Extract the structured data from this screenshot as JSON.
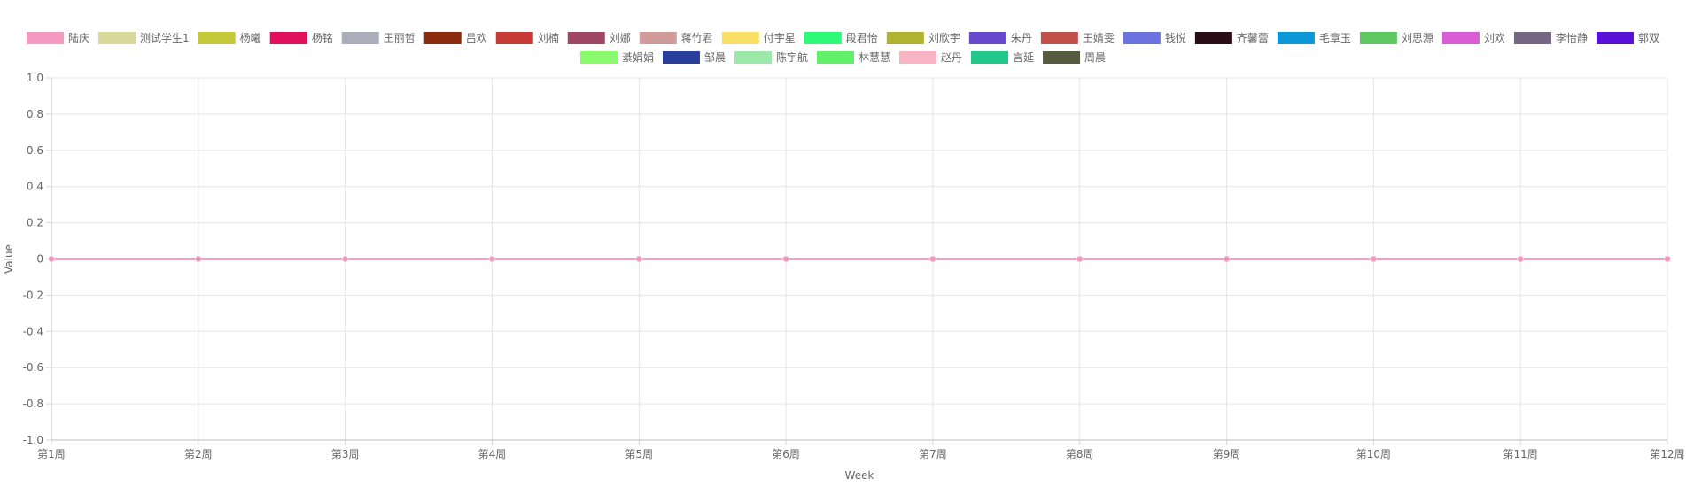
{
  "chart_data": {
    "type": "line",
    "title": "",
    "xlabel": "Week",
    "ylabel": "Value",
    "ylim": [
      -1.0,
      1.0
    ],
    "y_ticks": [
      1.0,
      0.8,
      0.6,
      0.4,
      0.2,
      0,
      -0.2,
      -0.4,
      -0.6,
      -0.8,
      -1.0
    ],
    "y_tick_labels": [
      "1.0",
      "0.8",
      "0.6",
      "0.4",
      "0.2",
      "0",
      "-0.2",
      "-0.4",
      "-0.6",
      "-0.8",
      "-1.0"
    ],
    "categories": [
      "第1周",
      "第2周",
      "第3周",
      "第4周",
      "第5周",
      "第6周",
      "第7周",
      "第8周",
      "第9周",
      "第10周",
      "第11周",
      "第12周"
    ],
    "grid": true,
    "legend_position": "top",
    "series": [
      {
        "name": "陆庆",
        "color": "#f49ac1",
        "values": [
          0,
          0,
          0,
          0,
          0,
          0,
          0,
          0,
          0,
          0,
          0,
          0
        ]
      },
      {
        "name": "测试学生1",
        "color": "#d9d99b",
        "values": [
          0,
          0,
          0,
          0,
          0,
          0,
          0,
          0,
          0,
          0,
          0,
          0
        ]
      },
      {
        "name": "杨曦",
        "color": "#c4c93a",
        "values": [
          0,
          0,
          0,
          0,
          0,
          0,
          0,
          0,
          0,
          0,
          0,
          0
        ]
      },
      {
        "name": "杨铭",
        "color": "#e0105d",
        "values": [
          0,
          0,
          0,
          0,
          0,
          0,
          0,
          0,
          0,
          0,
          0,
          0
        ]
      },
      {
        "name": "王丽哲",
        "color": "#adadbb",
        "values": [
          0,
          0,
          0,
          0,
          0,
          0,
          0,
          0,
          0,
          0,
          0,
          0
        ]
      },
      {
        "name": "吕欢",
        "color": "#8b2a0c",
        "values": [
          0,
          0,
          0,
          0,
          0,
          0,
          0,
          0,
          0,
          0,
          0,
          0
        ]
      },
      {
        "name": "刘楠",
        "color": "#c63a37",
        "values": [
          0,
          0,
          0,
          0,
          0,
          0,
          0,
          0,
          0,
          0,
          0,
          0
        ]
      },
      {
        "name": "刘娜",
        "color": "#a14766",
        "values": [
          0,
          0,
          0,
          0,
          0,
          0,
          0,
          0,
          0,
          0,
          0,
          0
        ]
      },
      {
        "name": "蒋竹君",
        "color": "#cf9b9b",
        "values": [
          0,
          0,
          0,
          0,
          0,
          0,
          0,
          0,
          0,
          0,
          0,
          0
        ]
      },
      {
        "name": "付宇星",
        "color": "#fbe068",
        "values": [
          0,
          0,
          0,
          0,
          0,
          0,
          0,
          0,
          0,
          0,
          0,
          0
        ]
      },
      {
        "name": "段君怡",
        "color": "#2dfb78",
        "values": [
          0,
          0,
          0,
          0,
          0,
          0,
          0,
          0,
          0,
          0,
          0,
          0
        ]
      },
      {
        "name": "刘欣宇",
        "color": "#b1b22f",
        "values": [
          0,
          0,
          0,
          0,
          0,
          0,
          0,
          0,
          0,
          0,
          0,
          0
        ]
      },
      {
        "name": "朱丹",
        "color": "#6649cc",
        "values": [
          0,
          0,
          0,
          0,
          0,
          0,
          0,
          0,
          0,
          0,
          0,
          0
        ]
      },
      {
        "name": "王婧雯",
        "color": "#c4504b",
        "values": [
          0,
          0,
          0,
          0,
          0,
          0,
          0,
          0,
          0,
          0,
          0,
          0
        ]
      },
      {
        "name": "钱悦",
        "color": "#6a73de",
        "values": [
          0,
          0,
          0,
          0,
          0,
          0,
          0,
          0,
          0,
          0,
          0,
          0
        ]
      },
      {
        "name": "齐馨蕾",
        "color": "#2b0d17",
        "values": [
          0,
          0,
          0,
          0,
          0,
          0,
          0,
          0,
          0,
          0,
          0,
          0
        ]
      },
      {
        "name": "毛章玉",
        "color": "#0b96d6",
        "values": [
          0,
          0,
          0,
          0,
          0,
          0,
          0,
          0,
          0,
          0,
          0,
          0
        ]
      },
      {
        "name": "刘思源",
        "color": "#5ec962",
        "values": [
          0,
          0,
          0,
          0,
          0,
          0,
          0,
          0,
          0,
          0,
          0,
          0
        ]
      },
      {
        "name": "刘欢",
        "color": "#d95ed4",
        "values": [
          0,
          0,
          0,
          0,
          0,
          0,
          0,
          0,
          0,
          0,
          0,
          0
        ]
      },
      {
        "name": "李怡静",
        "color": "#756683",
        "values": [
          0,
          0,
          0,
          0,
          0,
          0,
          0,
          0,
          0,
          0,
          0,
          0
        ]
      },
      {
        "name": "郭双",
        "color": "#5911d9",
        "values": [
          0,
          0,
          0,
          0,
          0,
          0,
          0,
          0,
          0,
          0,
          0,
          0
        ]
      },
      {
        "name": "綦娟娟",
        "color": "#89fb6c",
        "values": [
          0,
          0,
          0,
          0,
          0,
          0,
          0,
          0,
          0,
          0,
          0,
          0
        ]
      },
      {
        "name": "邹晨",
        "color": "#28409b",
        "values": [
          0,
          0,
          0,
          0,
          0,
          0,
          0,
          0,
          0,
          0,
          0,
          0
        ]
      },
      {
        "name": "陈宇航",
        "color": "#9be8a8",
        "values": [
          0,
          0,
          0,
          0,
          0,
          0,
          0,
          0,
          0,
          0,
          0,
          0
        ]
      },
      {
        "name": "林慧慧",
        "color": "#62f06a",
        "values": [
          0,
          0,
          0,
          0,
          0,
          0,
          0,
          0,
          0,
          0,
          0,
          0
        ]
      },
      {
        "name": "赵丹",
        "color": "#f8b3c4",
        "values": [
          0,
          0,
          0,
          0,
          0,
          0,
          0,
          0,
          0,
          0,
          0,
          0
        ]
      },
      {
        "name": "言延",
        "color": "#22c78c",
        "values": [
          0,
          0,
          0,
          0,
          0,
          0,
          0,
          0,
          0,
          0,
          0,
          0
        ]
      },
      {
        "name": "周晨",
        "color": "#565a3f",
        "values": [
          0,
          0,
          0,
          0,
          0,
          0,
          0,
          0,
          0,
          0,
          0,
          0
        ]
      }
    ]
  }
}
